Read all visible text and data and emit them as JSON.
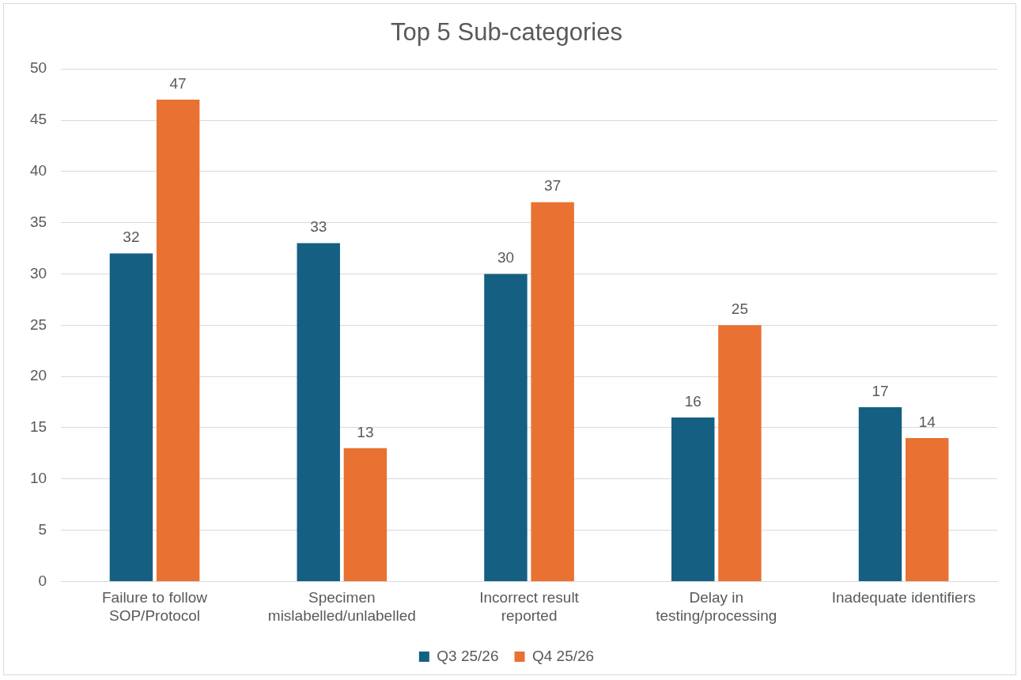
{
  "chart_data": {
    "type": "bar",
    "title": "Top 5 Sub-categories",
    "categories": [
      "Failure to follow SOP/Protocol",
      "Specimen mislabelled/unlabelled",
      "Incorrect result reported",
      "Delay in testing/processing",
      "Inadequate identifiers"
    ],
    "series": [
      {
        "name": "Q3 25/26",
        "color": "#156082",
        "values": [
          32,
          33,
          30,
          16,
          17
        ]
      },
      {
        "name": "Q4 25/26",
        "color": "#e97132",
        "values": [
          47,
          13,
          37,
          25,
          14
        ]
      }
    ],
    "ylim": [
      0,
      50
    ],
    "yticks": [
      0,
      5,
      10,
      15,
      20,
      25,
      30,
      35,
      40,
      45,
      50
    ],
    "grid": "y",
    "legend": "bottom",
    "data_labels": true
  }
}
